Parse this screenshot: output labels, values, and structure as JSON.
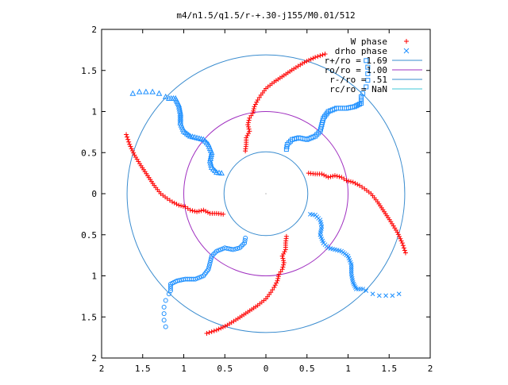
{
  "chart_data": {
    "type": "scatter",
    "title": "m4/n1.5/q1.5/r-+.30-j155/M0.01/512",
    "xlabel": "",
    "ylabel": "",
    "xlim": [
      -2,
      2
    ],
    "ylim": [
      -2,
      2
    ],
    "x_ticks": [
      -2,
      -1.5,
      -1,
      -0.5,
      0,
      0.5,
      1,
      1.5,
      2
    ],
    "y_ticks": [
      -2,
      -1.5,
      -1,
      -0.5,
      0,
      0.5,
      1,
      1.5,
      2
    ],
    "x_tick_labels": [
      "2",
      "1.5",
      "1",
      "0.5",
      "0",
      "0.5",
      "1",
      "1.5",
      "2"
    ],
    "y_tick_labels": [
      "2",
      "1.5",
      "1",
      "0.5",
      "0",
      "0.5",
      "1",
      "1.5",
      "2"
    ],
    "grid": false,
    "legend_placement": "top-right",
    "colors": {
      "w_phase": "#ff0000",
      "drho_phase": "#1e90ff",
      "r_plus": "#3a8ccf",
      "r_o": "#a030c0",
      "r_minus": "#3a8ccf",
      "r_c": "#40c8d8",
      "axes": "#000000"
    },
    "legend": [
      {
        "label": "W phase",
        "marker": "plus",
        "color_key": "w_phase"
      },
      {
        "label": "drho phase",
        "marker": "cross",
        "color_key": "drho_phase"
      },
      {
        "label": "r+/ro = 1.69",
        "marker": "line",
        "color_key": "r_plus"
      },
      {
        "label": "ro/ro = 1.00",
        "marker": "line",
        "color_key": "r_o"
      },
      {
        "label": "r-/ro = .51",
        "marker": "line",
        "color_key": "r_minus"
      },
      {
        "label": "rc/ro = NaN",
        "marker": "line",
        "color_key": "r_c"
      }
    ],
    "circles": [
      {
        "name": "r+/ro",
        "r": 1.69,
        "color_key": "r_plus"
      },
      {
        "name": "ro/ro",
        "r": 1.0,
        "color_key": "r_o"
      },
      {
        "name": "r-/ro",
        "r": 0.51,
        "color_key": "r_minus"
      }
    ],
    "arm_template": {
      "red": [
        [
          0.52,
          0.25
        ],
        [
          0.6,
          0.24
        ],
        [
          0.68,
          0.24
        ],
        [
          0.76,
          0.2
        ],
        [
          0.84,
          0.22
        ],
        [
          0.92,
          0.2
        ],
        [
          0.98,
          0.16
        ],
        [
          1.06,
          0.14
        ],
        [
          1.14,
          0.1
        ],
        [
          1.2,
          0.06
        ],
        [
          1.28,
          0.0
        ],
        [
          1.36,
          -0.1
        ],
        [
          1.44,
          -0.22
        ],
        [
          1.52,
          -0.34
        ],
        [
          1.6,
          -0.47
        ],
        [
          1.66,
          -0.6
        ],
        [
          1.7,
          -0.72
        ]
      ],
      "blue_lines": [
        [
          0.54,
          -0.25
        ],
        [
          0.6,
          -0.26
        ],
        [
          0.66,
          -0.32
        ],
        [
          0.68,
          -0.4
        ],
        [
          0.66,
          -0.5
        ],
        [
          0.7,
          -0.6
        ],
        [
          0.76,
          -0.66
        ],
        [
          0.84,
          -0.68
        ],
        [
          0.92,
          -0.7
        ],
        [
          1.0,
          -0.76
        ],
        [
          1.04,
          -0.86
        ],
        [
          1.04,
          -0.98
        ],
        [
          1.06,
          -1.08
        ],
        [
          1.1,
          -1.16
        ],
        [
          1.18,
          -1.16
        ]
      ],
      "blue_markers": [
        [
          1.22,
          -1.18
        ],
        [
          1.3,
          -1.22
        ],
        [
          1.38,
          -1.24
        ],
        [
          1.46,
          -1.24
        ],
        [
          1.54,
          -1.24
        ],
        [
          1.62,
          -1.22
        ]
      ],
      "rotations_deg": [
        0,
        90,
        180,
        270
      ],
      "marker_types": [
        "x",
        "square",
        "triangle",
        "circle"
      ]
    }
  }
}
